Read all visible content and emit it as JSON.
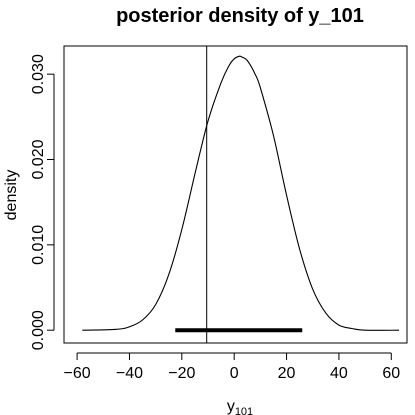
{
  "chart_data": {
    "type": "line",
    "title": "posterior density of y_101",
    "xlabel_base": "y",
    "xlabel_sub": "101",
    "ylabel": "density",
    "xlim": [
      -65,
      66
    ],
    "ylim": [
      -0.0015,
      0.0333
    ],
    "x_ticks": [
      -60,
      -40,
      -20,
      0,
      20,
      40,
      60
    ],
    "x_tick_labels": [
      "−60",
      "−40",
      "−20",
      "0",
      "20",
      "40",
      "60"
    ],
    "y_ticks": [
      0.0,
      0.01,
      0.02,
      0.03
    ],
    "y_tick_labels": [
      "0.000",
      "0.010",
      "0.020",
      "0.030"
    ],
    "series": [
      {
        "x": [
          -58,
          -45,
          -40,
          -35,
          -30,
          -25,
          -20,
          -15,
          -10,
          -5,
          -2,
          0,
          2,
          3,
          5,
          8,
          10,
          15,
          20,
          25,
          30,
          35,
          40,
          45,
          50,
          63
        ],
        "y": [
          0.0,
          0.0001,
          0.0004,
          0.0012,
          0.003,
          0.0065,
          0.0118,
          0.0183,
          0.0245,
          0.029,
          0.031,
          0.0318,
          0.0321,
          0.032,
          0.0316,
          0.03,
          0.0284,
          0.0228,
          0.0158,
          0.0095,
          0.0048,
          0.002,
          0.0006,
          0.0002,
          0.0,
          0.0
        ]
      }
    ],
    "vertical_line_x": -10.5,
    "interval": [
      -22.5,
      26
    ]
  }
}
